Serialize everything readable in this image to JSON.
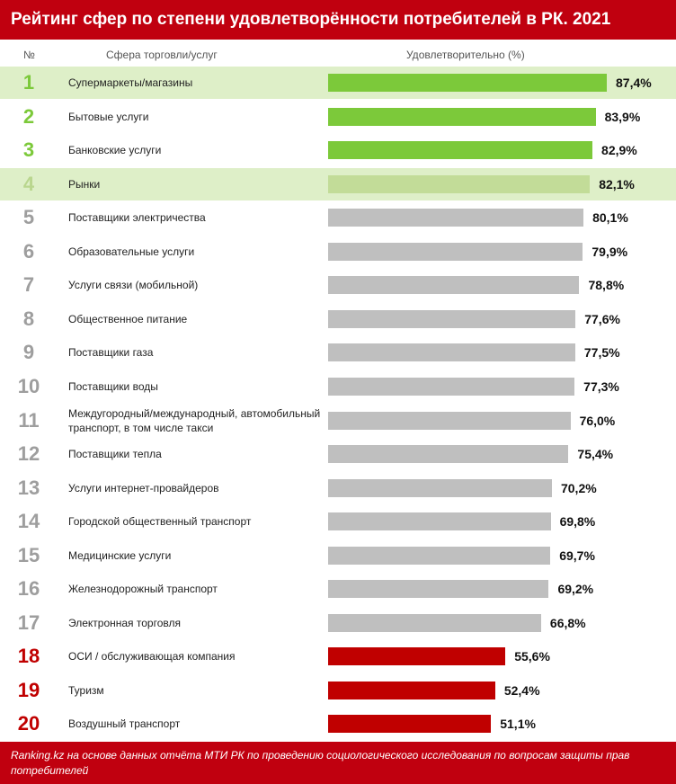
{
  "chart_data": {
    "type": "bar",
    "orientation": "horizontal",
    "title": "Рейтинг сфер по степени удовлетворённости потребителей в РК. 2021",
    "columns": {
      "rank": "№",
      "category": "Сфера торговли/услуг",
      "value": "Удовлетворительно (%)"
    },
    "xlim": [
      0,
      100
    ],
    "colors": {
      "top": "#7cc93a",
      "highlight": "#c2dc98",
      "neutral": "#bfbfbf",
      "bottom": "#c00000",
      "top_rank": "#7cc93a",
      "highlight_rank": "#b9d68e",
      "neutral_rank": "#9e9e9e",
      "bottom_rank": "#c00000",
      "highlight_row": "#deefc8"
    },
    "items": [
      {
        "rank": "1",
        "category": "Супермаркеты/магазины",
        "value": 87.4,
        "label": "87,4%",
        "group": "top",
        "row_highlight": true
      },
      {
        "rank": "2",
        "category": "Бытовые услуги",
        "value": 83.9,
        "label": "83,9%",
        "group": "top"
      },
      {
        "rank": "3",
        "category": "Банковские услуги",
        "value": 82.9,
        "label": "82,9%",
        "group": "top"
      },
      {
        "rank": "4",
        "category": "Рынки",
        "value": 82.1,
        "label": "82,1%",
        "group": "highlight",
        "row_highlight": true
      },
      {
        "rank": "5",
        "category": "Поставщики электричества",
        "value": 80.1,
        "label": "80,1%",
        "group": "neutral"
      },
      {
        "rank": "6",
        "category": "Образовательные услуги",
        "value": 79.9,
        "label": "79,9%",
        "group": "neutral"
      },
      {
        "rank": "7",
        "category": "Услуги связи (мобильной)",
        "value": 78.8,
        "label": "78,8%",
        "group": "neutral"
      },
      {
        "rank": "8",
        "category": "Общественное питание",
        "value": 77.6,
        "label": "77,6%",
        "group": "neutral"
      },
      {
        "rank": "9",
        "category": "Поставщики газа",
        "value": 77.5,
        "label": "77,5%",
        "group": "neutral"
      },
      {
        "rank": "10",
        "category": "Поставщики воды",
        "value": 77.3,
        "label": "77,3%",
        "group": "neutral"
      },
      {
        "rank": "11",
        "category": "Междугородный/международный, автомобильный транспорт, в том числе такси",
        "value": 76.0,
        "label": "76,0%",
        "group": "neutral"
      },
      {
        "rank": "12",
        "category": "Поставщики тепла",
        "value": 75.4,
        "label": "75,4%",
        "group": "neutral"
      },
      {
        "rank": "13",
        "category": "Услуги интернет-провайдеров",
        "value": 70.2,
        "label": "70,2%",
        "group": "neutral"
      },
      {
        "rank": "14",
        "category": "Городской общественный транспорт",
        "value": 69.8,
        "label": "69,8%",
        "group": "neutral"
      },
      {
        "rank": "15",
        "category": "Медицинские услуги",
        "value": 69.7,
        "label": "69,7%",
        "group": "neutral"
      },
      {
        "rank": "16",
        "category": "Железнодорожный транспорт",
        "value": 69.2,
        "label": "69,2%",
        "group": "neutral"
      },
      {
        "rank": "17",
        "category": "Электронная торговля",
        "value": 66.8,
        "label": "66,8%",
        "group": "neutral"
      },
      {
        "rank": "18",
        "category": "ОСИ / обслуживающая компания",
        "value": 55.6,
        "label": "55,6%",
        "group": "bottom"
      },
      {
        "rank": "19",
        "category": "Туризм",
        "value": 52.4,
        "label": "52,4%",
        "group": "bottom"
      },
      {
        "rank": "20",
        "category": "Воздушный транспорт",
        "value": 51.1,
        "label": "51,1%",
        "group": "bottom"
      }
    ],
    "source": "Ranking.kz на основе данных отчёта МТИ РК по проведению социологического исследования по вопросам защиты прав потребителей"
  }
}
